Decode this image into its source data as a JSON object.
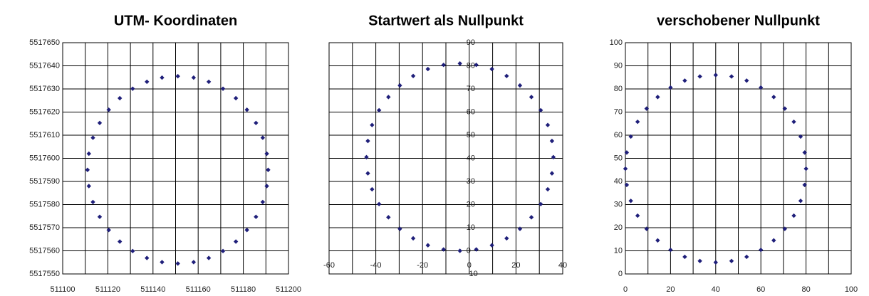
{
  "chart_data": [
    {
      "type": "scatter",
      "title": "UTM- Koordinaten",
      "color": "#1f1f7a",
      "grid": true,
      "xlim": [
        511100,
        511200
      ],
      "xticks": [
        511100,
        511120,
        511140,
        511160,
        511180,
        511200
      ],
      "x_minor_grid": [
        511110,
        511130,
        511150,
        511170,
        511190
      ],
      "ylim": [
        5517550,
        5517650
      ],
      "yticks": [
        5517550,
        5517560,
        5517570,
        5517580,
        5517590,
        5517600,
        5517610,
        5517620,
        5517630,
        5517640,
        5517650
      ],
      "x": [
        511191,
        511190.4,
        511188.6,
        511185.6,
        511181.6,
        511176.7,
        511171,
        511164.7,
        511158,
        511151,
        511144,
        511137.3,
        511131,
        511125.3,
        511120.4,
        511116.4,
        511113.4,
        511111.6,
        511111,
        511111.6,
        511113.4,
        511116.4,
        511120.4,
        511125.3,
        511131,
        511137.3,
        511144,
        511151,
        511158,
        511164.7,
        511171,
        511176.7,
        511181.6,
        511185.6,
        511188.6,
        511190.4
      ],
      "values": [
        5517595,
        5517602,
        5517608.9,
        5517615.3,
        5517621,
        5517626,
        5517630.1,
        5517633.1,
        5517634.9,
        5517635.5,
        5517634.9,
        5517633.1,
        5517630.1,
        5517626,
        5517621,
        5517615.3,
        5517608.9,
        5517602,
        5517595,
        5517588,
        5517581.1,
        5517574.7,
        5517569,
        5517564,
        5517559.9,
        5517556.9,
        5517555.1,
        5517554.5,
        5517555.1,
        5517556.9,
        5517559.9,
        5517564,
        5517569,
        5517574.7,
        5517581.1,
        5517588
      ]
    },
    {
      "type": "scatter",
      "title": "Startwert als Nullpunkt",
      "color": "#1f1f7a",
      "grid": true,
      "y_axis_at": 0,
      "xlim": [
        -60,
        40
      ],
      "xticks": [
        -60,
        -40,
        -20,
        0,
        20,
        40
      ],
      "x_minor_grid": [
        -50,
        -30,
        -10,
        10,
        30
      ],
      "ylim": [
        -10,
        90
      ],
      "yticks": [
        -10,
        0,
        10,
        20,
        30,
        40,
        50,
        60,
        70,
        80,
        90
      ],
      "x": [
        36,
        35.4,
        33.6,
        30.6,
        26.6,
        21.7,
        16,
        9.7,
        3,
        -4,
        -11,
        -17.7,
        -24,
        -29.7,
        -34.6,
        -38.6,
        -41.6,
        -43.4,
        -44,
        -43.4,
        -41.6,
        -38.6,
        -34.6,
        -29.7,
        -24,
        -17.7,
        -11,
        -4,
        3,
        9.7,
        16,
        21.7,
        26.6,
        30.6,
        33.6,
        35.4
      ],
      "values": [
        40.5,
        47.5,
        54.4,
        60.8,
        66.5,
        71.5,
        75.6,
        78.6,
        80.4,
        81,
        80.4,
        78.6,
        75.6,
        71.5,
        66.5,
        60.8,
        54.4,
        47.5,
        40.5,
        33.5,
        26.6,
        20.2,
        14.5,
        9.5,
        5.4,
        2.4,
        0.6,
        0,
        0.6,
        2.4,
        5.4,
        9.5,
        14.5,
        20.2,
        26.6,
        33.5
      ]
    },
    {
      "type": "scatter",
      "title": "verschobener Nullpunkt",
      "color": "#1f1f7a",
      "grid": true,
      "xlim": [
        0,
        100
      ],
      "xticks": [
        0,
        20,
        40,
        60,
        80,
        100
      ],
      "x_minor_grid": [
        10,
        30,
        50,
        70,
        90
      ],
      "ylim": [
        0,
        100
      ],
      "yticks": [
        0,
        10,
        20,
        30,
        40,
        50,
        60,
        70,
        80,
        90,
        100
      ],
      "x": [
        80,
        79.4,
        77.6,
        74.6,
        70.6,
        65.7,
        60,
        53.7,
        47,
        40,
        33,
        26.3,
        20,
        14.3,
        9.4,
        5.4,
        2.4,
        0.6,
        0,
        0.6,
        2.4,
        5.4,
        9.4,
        14.3,
        20,
        26.3,
        33,
        40,
        47,
        53.7,
        60,
        65.7,
        70.6,
        74.6,
        77.6,
        79.4
      ],
      "values": [
        45.5,
        52.5,
        59.4,
        65.8,
        71.5,
        76.5,
        80.6,
        83.6,
        85.4,
        86,
        85.4,
        83.6,
        80.6,
        76.5,
        71.5,
        65.8,
        59.4,
        52.5,
        45.5,
        38.5,
        31.6,
        25.2,
        19.5,
        14.5,
        10.4,
        7.4,
        5.6,
        5,
        5.6,
        7.4,
        10.4,
        14.5,
        19.5,
        25.2,
        31.6,
        38.5
      ]
    }
  ]
}
